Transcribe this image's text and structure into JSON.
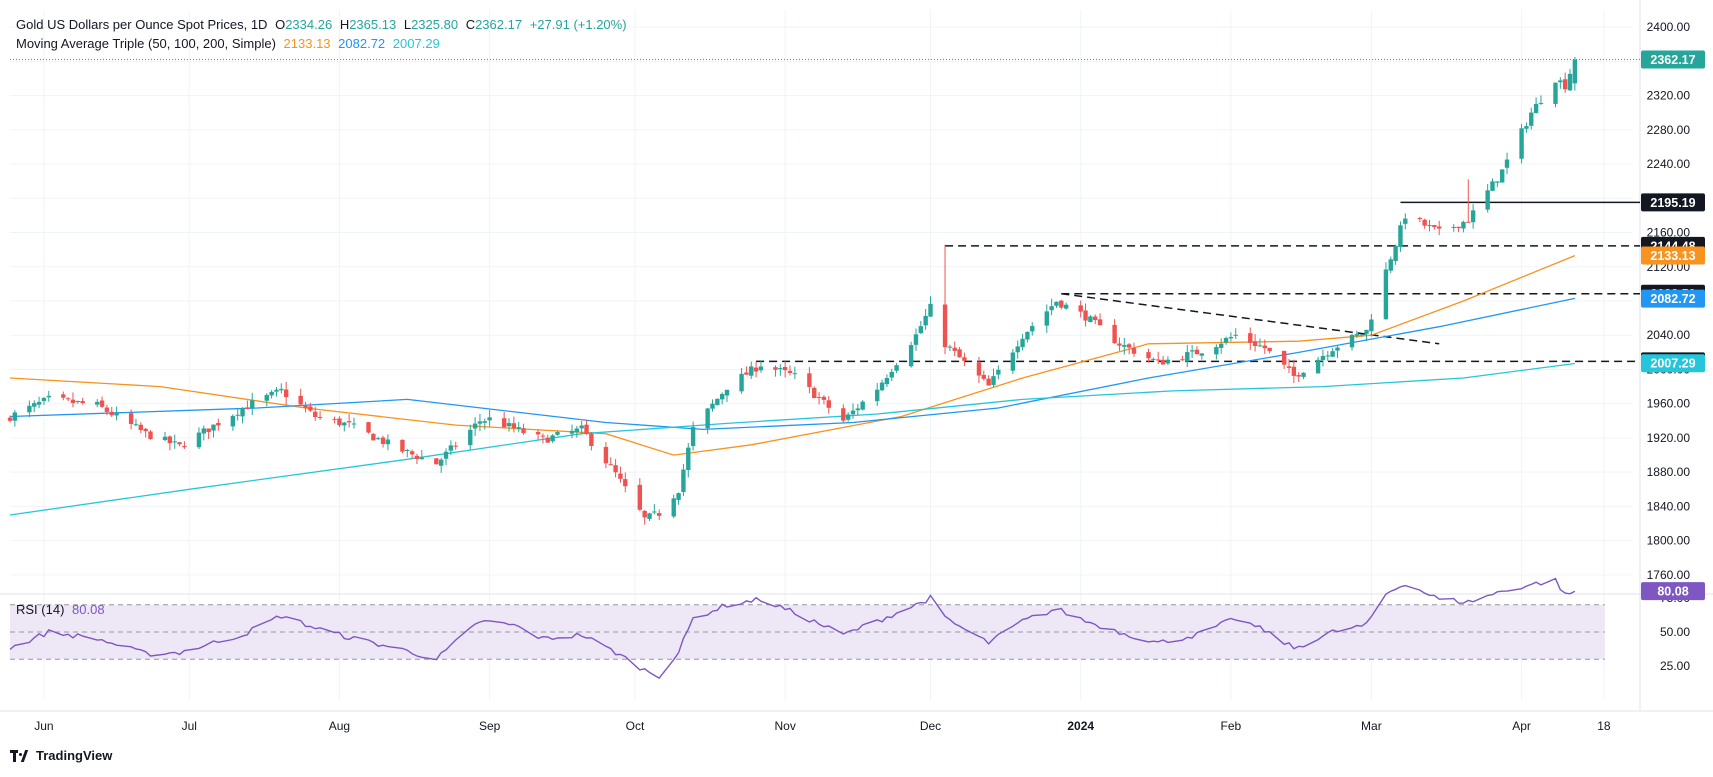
{
  "header": {
    "title": "Gold US Dollars per Ounce Spot Prices, 1D",
    "open_label": "O",
    "open": "2334.26",
    "high_label": "H",
    "high": "2365.13",
    "low_label": "L",
    "low": "2325.80",
    "close_label": "C",
    "close": "2362.17",
    "change": "+27.91 (+1.20%)",
    "ma_title": "Moving Average Triple (50, 100, 200, Simple)",
    "ma50": "2133.13",
    "ma100": "2082.72",
    "ma200": "2007.29",
    "rsi_title": "RSI (14)",
    "rsi_value": "80.08"
  },
  "colors": {
    "up": "#26a69a",
    "down": "#ef5350",
    "ma50": "#f7931e",
    "ma100": "#2196f3",
    "ma200": "#26c6da",
    "rsi": "#7e57c2",
    "rsi_band": "#ede7f6",
    "grid": "#f0f3fa",
    "text": "#131722"
  },
  "branding": {
    "logo_text": "TradingView"
  },
  "chart_data": {
    "type": "candlestick",
    "symbol": "Gold US Dollars per Ounce Spot Prices",
    "interval": "1D",
    "y_axis": {
      "min": 1740,
      "max": 2420,
      "ticks": [
        1760,
        1800,
        1840,
        1880,
        1920,
        1960,
        2000,
        2040,
        2080,
        2120,
        2160,
        2200,
        2240,
        2280,
        2320,
        2360,
        2400
      ]
    },
    "x_axis": {
      "start": "2023-05-25",
      "end": "2024-04-24",
      "tick_labels": [
        {
          "date": "2023-06-01",
          "label": "Jun"
        },
        {
          "date": "2023-07-01",
          "label": "Jul"
        },
        {
          "date": "2023-08-01",
          "label": "Aug"
        },
        {
          "date": "2023-09-01",
          "label": "Sep"
        },
        {
          "date": "2023-10-01",
          "label": "Oct"
        },
        {
          "date": "2023-11-01",
          "label": "Nov"
        },
        {
          "date": "2023-12-01",
          "label": "Dec"
        },
        {
          "date": "2024-01-01",
          "label": "2024"
        },
        {
          "date": "2024-02-01",
          "label": "Feb"
        },
        {
          "date": "2024-03-01",
          "label": "Mar"
        },
        {
          "date": "2024-04-01",
          "label": "Apr"
        },
        {
          "date": "2024-04-18",
          "label": "18"
        }
      ]
    },
    "anchors": [
      [
        "2023-05-25",
        1945
      ],
      [
        "2023-06-02",
        1965
      ],
      [
        "2023-06-12",
        1958
      ],
      [
        "2023-06-22",
        1925
      ],
      [
        "2023-06-29",
        1910
      ],
      [
        "2023-07-12",
        1955
      ],
      [
        "2023-07-20",
        1975
      ],
      [
        "2023-07-27",
        1945
      ],
      [
        "2023-08-03",
        1935
      ],
      [
        "2023-08-14",
        1905
      ],
      [
        "2023-08-21",
        1890
      ],
      [
        "2023-08-30",
        1940
      ],
      [
        "2023-09-01",
        1942
      ],
      [
        "2023-09-12",
        1918
      ],
      [
        "2023-09-20",
        1930
      ],
      [
        "2023-09-27",
        1878
      ],
      [
        "2023-10-03",
        1825
      ],
      [
        "2023-10-06",
        1832
      ],
      [
        "2023-10-10",
        1860
      ],
      [
        "2023-10-13",
        1930
      ],
      [
        "2023-10-20",
        1980
      ],
      [
        "2023-10-27",
        2006
      ],
      [
        "2023-11-03",
        1992
      ],
      [
        "2023-11-13",
        1940
      ],
      [
        "2023-11-20",
        1978
      ],
      [
        "2023-11-28",
        2040
      ],
      [
        "2023-12-01",
        2072
      ],
      [
        "2023-12-04",
        2030
      ],
      [
        "2023-12-13",
        1980
      ],
      [
        "2023-12-20",
        2040
      ],
      [
        "2023-12-27",
        2080
      ],
      [
        "2024-01-02",
        2062
      ],
      [
        "2024-01-09",
        2030
      ],
      [
        "2024-01-17",
        2008
      ],
      [
        "2024-01-25",
        2020
      ],
      [
        "2024-02-02",
        2040
      ],
      [
        "2024-02-08",
        2025
      ],
      [
        "2024-02-14",
        1992
      ],
      [
        "2024-02-22",
        2025
      ],
      [
        "2024-02-29",
        2045
      ],
      [
        "2024-03-04",
        2115
      ],
      [
        "2024-03-08",
        2180
      ],
      [
        "2024-03-15",
        2160
      ],
      [
        "2024-03-21",
        2175
      ],
      [
        "2024-03-28",
        2232
      ],
      [
        "2024-04-03",
        2300
      ],
      [
        "2024-04-08",
        2340
      ],
      [
        "2024-04-10",
        2332
      ],
      [
        "2024-04-12",
        2362
      ]
    ],
    "last_candle": {
      "date": "2024-04-12",
      "open": 2334.26,
      "high": 2365.13,
      "low": 2325.8,
      "close": 2362.17
    },
    "spikes": [
      {
        "date": "2023-12-04",
        "high": 2146
      },
      {
        "date": "2024-03-21",
        "high": 2222
      }
    ],
    "moving_averages": [
      {
        "name": "MA 50",
        "last": 2133.13,
        "points": [
          [
            "2023-05-25",
            1990
          ],
          [
            "2023-06-25",
            1980
          ],
          [
            "2023-07-25",
            1955
          ],
          [
            "2023-08-25",
            1935
          ],
          [
            "2023-09-25",
            1925
          ],
          [
            "2023-10-09",
            1900
          ],
          [
            "2023-10-25",
            1912
          ],
          [
            "2023-11-25",
            1945
          ],
          [
            "2023-12-20",
            1990
          ],
          [
            "2024-01-15",
            2030
          ],
          [
            "2024-02-15",
            2033
          ],
          [
            "2024-03-01",
            2040
          ],
          [
            "2024-03-20",
            2080
          ],
          [
            "2024-04-12",
            2133
          ]
        ]
      },
      {
        "name": "MA 100",
        "last": 2082.72,
        "points": [
          [
            "2023-05-25",
            1945
          ],
          [
            "2023-07-15",
            1955
          ],
          [
            "2023-08-15",
            1965
          ],
          [
            "2023-09-25",
            1938
          ],
          [
            "2023-10-15",
            1930
          ],
          [
            "2023-11-15",
            1938
          ],
          [
            "2023-12-15",
            1955
          ],
          [
            "2024-01-15",
            1990
          ],
          [
            "2024-02-15",
            2020
          ],
          [
            "2024-03-15",
            2050
          ],
          [
            "2024-04-12",
            2083
          ]
        ]
      },
      {
        "name": "MA 200",
        "last": 2007.29,
        "points": [
          [
            "2023-05-25",
            1830
          ],
          [
            "2023-07-01",
            1860
          ],
          [
            "2023-08-15",
            1895
          ],
          [
            "2023-09-20",
            1925
          ],
          [
            "2023-10-20",
            1937
          ],
          [
            "2023-11-20",
            1948
          ],
          [
            "2023-12-20",
            1965
          ],
          [
            "2024-01-20",
            1975
          ],
          [
            "2024-02-20",
            1980
          ],
          [
            "2024-03-20",
            1990
          ],
          [
            "2024-04-12",
            2007
          ]
        ]
      }
    ],
    "price_labels": [
      {
        "value": 2362.17,
        "text": "2362.17",
        "bg": "#26a69a"
      },
      {
        "value": 2195.19,
        "text": "2195.19",
        "bg": "#131722"
      },
      {
        "value": 2144.48,
        "text": "2144.48",
        "bg": "#131722"
      },
      {
        "value": 2133.13,
        "text": "2133.13",
        "bg": "#f7931e"
      },
      {
        "value": 2088.5,
        "text": "2088.50",
        "bg": "#131722"
      },
      {
        "value": 2082.72,
        "text": "2082.72",
        "bg": "#2196f3"
      },
      {
        "value": 2009.49,
        "text": "2009.49",
        "bg": "#131722"
      },
      {
        "value": 2007.29,
        "text": "2007.29",
        "bg": "#26c6da"
      }
    ],
    "horizontal_lines": [
      {
        "value": 2195.19,
        "style": "solid",
        "from": "2024-03-07"
      },
      {
        "value": 2144.48,
        "style": "dashed",
        "from": "2023-12-04"
      },
      {
        "value": 2088.5,
        "style": "dashed",
        "from": "2023-12-28"
      },
      {
        "value": 2009.49,
        "style": "dashed",
        "from": "2023-10-26"
      }
    ],
    "trend_line": {
      "from": [
        "2023-12-28",
        2088.5
      ],
      "to": [
        "2024-03-15",
        2030
      ]
    },
    "rsi": {
      "period": 14,
      "last": 80.08,
      "ticks": [
        25,
        50,
        75
      ],
      "band": [
        30,
        70
      ],
      "points": [
        [
          "2023-05-25",
          38
        ],
        [
          "2023-06-02",
          50
        ],
        [
          "2023-06-12",
          45
        ],
        [
          "2023-06-22",
          34
        ],
        [
          "2023-06-29",
          35
        ],
        [
          "2023-07-12",
          48
        ],
        [
          "2023-07-20",
          62
        ],
        [
          "2023-07-27",
          53
        ],
        [
          "2023-08-03",
          46
        ],
        [
          "2023-08-14",
          37
        ],
        [
          "2023-08-21",
          30
        ],
        [
          "2023-08-30",
          58
        ],
        [
          "2023-09-06",
          55
        ],
        [
          "2023-09-12",
          45
        ],
        [
          "2023-09-20",
          48
        ],
        [
          "2023-09-27",
          35
        ],
        [
          "2023-10-03",
          22
        ],
        [
          "2023-10-06",
          18
        ],
        [
          "2023-10-10",
          35
        ],
        [
          "2023-10-13",
          60
        ],
        [
          "2023-10-20",
          70
        ],
        [
          "2023-10-27",
          74
        ],
        [
          "2023-11-03",
          64
        ],
        [
          "2023-11-13",
          48
        ],
        [
          "2023-11-20",
          58
        ],
        [
          "2023-11-28",
          70
        ],
        [
          "2023-12-01",
          75
        ],
        [
          "2023-12-04",
          60
        ],
        [
          "2023-12-13",
          42
        ],
        [
          "2023-12-20",
          58
        ],
        [
          "2023-12-27",
          67
        ],
        [
          "2024-01-02",
          58
        ],
        [
          "2024-01-09",
          50
        ],
        [
          "2024-01-17",
          42
        ],
        [
          "2024-01-25",
          48
        ],
        [
          "2024-02-02",
          60
        ],
        [
          "2024-02-08",
          51
        ],
        [
          "2024-02-14",
          38
        ],
        [
          "2024-02-22",
          50
        ],
        [
          "2024-02-29",
          55
        ],
        [
          "2024-03-04",
          78
        ],
        [
          "2024-03-08",
          86
        ],
        [
          "2024-03-15",
          74
        ],
        [
          "2024-03-21",
          72
        ],
        [
          "2024-03-28",
          80
        ],
        [
          "2024-04-03",
          85
        ],
        [
          "2024-04-08",
          88
        ],
        [
          "2024-04-10",
          77
        ],
        [
          "2024-04-12",
          80
        ]
      ]
    }
  }
}
